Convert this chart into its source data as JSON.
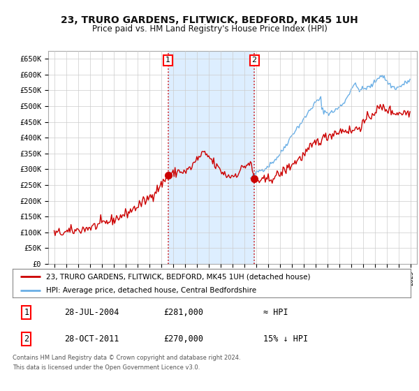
{
  "title": "23, TRURO GARDENS, FLITWICK, BEDFORD, MK45 1UH",
  "subtitle": "Price paid vs. HM Land Registry's House Price Index (HPI)",
  "ytick_labels": [
    "£0",
    "£50K",
    "£100K",
    "£150K",
    "£200K",
    "£250K",
    "£300K",
    "£350K",
    "£400K",
    "£450K",
    "£500K",
    "£550K",
    "£600K",
    "£650K"
  ],
  "ytick_values": [
    0,
    50000,
    100000,
    150000,
    200000,
    250000,
    300000,
    350000,
    400000,
    450000,
    500000,
    550000,
    600000,
    650000
  ],
  "hpi_line_color": "#6aafe6",
  "price_color": "#cc0000",
  "shade_color": "#ddeeff",
  "grid_color": "#cccccc",
  "bg_color": "#ffffff",
  "sale1_year": 2004.57,
  "sale1_price": 281000,
  "sale2_year": 2011.83,
  "sale2_price": 270000,
  "legend_line1": "23, TRURO GARDENS, FLITWICK, BEDFORD, MK45 1UH (detached house)",
  "legend_line2": "HPI: Average price, detached house, Central Bedfordshire",
  "footnote1": "Contains HM Land Registry data © Crown copyright and database right 2024.",
  "footnote2": "This data is licensed under the Open Government Licence v3.0.",
  "table_row1": [
    "1",
    "28-JUL-2004",
    "£281,000",
    "≈ HPI"
  ],
  "table_row2": [
    "2",
    "28-OCT-2011",
    "£270,000",
    "15% ↓ HPI"
  ],
  "xmin": 1994.5,
  "xmax": 2025.5,
  "ymin": 0,
  "ymax": 675000
}
